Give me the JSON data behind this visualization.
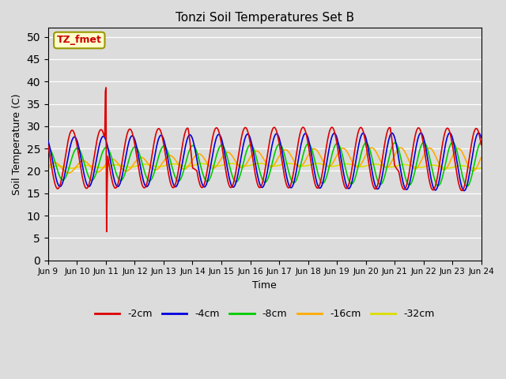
{
  "title": "Tonzi Soil Temperatures Set B",
  "xlabel": "Time",
  "ylabel": "Soil Temperature (C)",
  "ylim": [
    0,
    52
  ],
  "yticks": [
    0,
    5,
    10,
    15,
    20,
    25,
    30,
    35,
    40,
    45,
    50
  ],
  "background_color": "#dcdcdc",
  "plot_bg_color": "#dcdcdc",
  "annotation_text": "TZ_fmet",
  "annotation_bg": "#ffffcc",
  "annotation_border": "#999900",
  "series": {
    "-2cm": {
      "color": "#dd0000",
      "lw": 1.2
    },
    "-4cm": {
      "color": "#0000dd",
      "lw": 1.2
    },
    "-8cm": {
      "color": "#00cc00",
      "lw": 1.2
    },
    "-16cm": {
      "color": "#ffaa00",
      "lw": 1.2
    },
    "-32cm": {
      "color": "#dddd00",
      "lw": 1.2
    }
  },
  "xtick_labels": [
    "Jun 9",
    "Jun 10",
    "Jun 11",
    "Jun 12",
    "Jun 13",
    "Jun 14",
    "Jun 15",
    "Jun 16",
    "Jun 17",
    "Jun 18",
    "Jun 19",
    "Jun 20",
    "Jun 21",
    "Jun 22",
    "Jun 23",
    "Jun 24"
  ],
  "xtick_positions": [
    0,
    1,
    2,
    3,
    4,
    5,
    6,
    7,
    8,
    9,
    10,
    11,
    12,
    13,
    14,
    15
  ],
  "figsize": [
    6.4,
    4.8
  ],
  "dpi": 100
}
